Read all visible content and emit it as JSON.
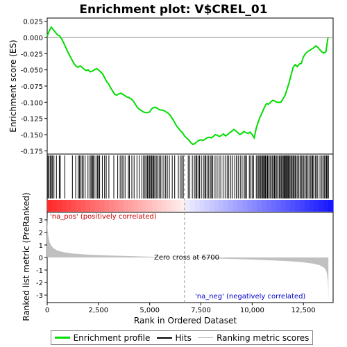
{
  "chart_data": {
    "type": "line",
    "title": "Enrichment plot: V$CREL_01",
    "top_panel": {
      "ylabel": "Enrichment score (ES)",
      "ylim": [
        -0.18,
        0.03
      ],
      "yticks": [
        0.025,
        0.0,
        -0.025,
        -0.05,
        -0.075,
        -0.1,
        -0.125,
        -0.15,
        -0.175
      ],
      "ytick_labels": [
        "0.025",
        "0.000",
        "-0.025",
        "-0.050",
        "-0.075",
        "-0.100",
        "-0.125",
        "-0.150",
        "-0.175"
      ],
      "series": [
        {
          "name": "Enrichment profile",
          "color": "#00dd00",
          "x": [
            0,
            100,
            200,
            300,
            400,
            500,
            600,
            700,
            800,
            900,
            1000,
            1100,
            1200,
            1300,
            1400,
            1500,
            1600,
            1700,
            1800,
            1900,
            2000,
            2100,
            2200,
            2300,
            2400,
            2500,
            2600,
            2700,
            2800,
            2900,
            3000,
            3100,
            3200,
            3300,
            3400,
            3500,
            3600,
            3700,
            3800,
            3900,
            4000,
            4100,
            4200,
            4300,
            4400,
            4500,
            4600,
            4700,
            4800,
            4900,
            5000,
            5100,
            5200,
            5300,
            5400,
            5500,
            5600,
            5700,
            5800,
            5900,
            6000,
            6100,
            6200,
            6300,
            6400,
            6500,
            6600,
            6700,
            6800,
            6900,
            7000,
            7100,
            7200,
            7300,
            7400,
            7500,
            7600,
            7700,
            7800,
            7900,
            8000,
            8100,
            8200,
            8300,
            8400,
            8500,
            8600,
            8700,
            8800,
            8900,
            9000,
            9100,
            9200,
            9300,
            9400,
            9500,
            9600,
            9700,
            9800,
            9900,
            10000,
            10100,
            10200,
            10300,
            10400,
            10500,
            10600,
            10700,
            10800,
            10900,
            11000,
            11100,
            11200,
            11300,
            11400,
            11500,
            11600,
            11700,
            11800,
            11900,
            12000,
            12100,
            12200,
            12300,
            12400,
            12500,
            12600,
            12700,
            12800,
            12900,
            13000,
            13100,
            13200,
            13300,
            13400,
            13500,
            13600,
            13700
          ],
          "y": [
            0.002,
            0.01,
            0.016,
            0.012,
            0.008,
            0.004,
            0.003,
            -0.002,
            -0.008,
            -0.015,
            -0.022,
            -0.028,
            -0.034,
            -0.04,
            -0.044,
            -0.046,
            -0.044,
            -0.046,
            -0.049,
            -0.051,
            -0.05,
            -0.053,
            -0.052,
            -0.05,
            -0.048,
            -0.05,
            -0.053,
            -0.056,
            -0.062,
            -0.068,
            -0.072,
            -0.078,
            -0.083,
            -0.088,
            -0.089,
            -0.087,
            -0.086,
            -0.088,
            -0.09,
            -0.092,
            -0.093,
            -0.095,
            -0.098,
            -0.103,
            -0.108,
            -0.111,
            -0.113,
            -0.115,
            -0.116,
            -0.116,
            -0.115,
            -0.11,
            -0.108,
            -0.108,
            -0.11,
            -0.112,
            -0.112,
            -0.113,
            -0.115,
            -0.117,
            -0.12,
            -0.125,
            -0.13,
            -0.136,
            -0.14,
            -0.144,
            -0.147,
            -0.152,
            -0.155,
            -0.158,
            -0.162,
            -0.165,
            -0.164,
            -0.161,
            -0.159,
            -0.158,
            -0.159,
            -0.157,
            -0.155,
            -0.154,
            -0.155,
            -0.153,
            -0.15,
            -0.151,
            -0.153,
            -0.151,
            -0.149,
            -0.152,
            -0.15,
            -0.147,
            -0.145,
            -0.142,
            -0.144,
            -0.147,
            -0.15,
            -0.148,
            -0.145,
            -0.147,
            -0.148,
            -0.146,
            -0.15,
            -0.155,
            -0.14,
            -0.13,
            -0.122,
            -0.115,
            -0.108,
            -0.102,
            -0.103,
            -0.1,
            -0.097,
            -0.098,
            -0.1,
            -0.1,
            -0.1,
            -0.095,
            -0.09,
            -0.08,
            -0.07,
            -0.058,
            -0.046,
            -0.042,
            -0.045,
            -0.041,
            -0.04,
            -0.03,
            -0.025,
            -0.022,
            -0.02,
            -0.018,
            -0.016,
            -0.013,
            -0.015,
            -0.019,
            -0.022,
            -0.024,
            -0.022,
            0.0
          ]
        }
      ]
    },
    "hits_panel": {
      "label": "Hits",
      "hit_positions": [
        40,
        90,
        150,
        210,
        260,
        330,
        450,
        590,
        640,
        860,
        1230,
        1390,
        1510,
        1570,
        1620,
        1700,
        1760,
        1850,
        1990,
        2090,
        2140,
        2200,
        2240,
        2290,
        2380,
        2460,
        2520,
        2560,
        2690,
        2800,
        2880,
        3010,
        3250,
        3440,
        3560,
        3650,
        3700,
        3800,
        3960,
        4010,
        4130,
        4240,
        4380,
        4490,
        4620,
        4700,
        4770,
        4830,
        4890,
        4950,
        5000,
        5050,
        5100,
        5150,
        5200,
        5250,
        5320,
        5390,
        5460,
        5530,
        5600,
        5690,
        5780,
        5860,
        5960,
        6100,
        6220,
        6400,
        6490,
        6570,
        6640,
        6880,
        6960,
        7080,
        7180,
        7250,
        7300,
        7360,
        7430,
        7520,
        7620,
        7690,
        7740,
        7800,
        7880,
        7960,
        8020,
        8080,
        8190,
        8290,
        8390,
        8470,
        8580,
        8680,
        8780,
        8860,
        8960,
        9050,
        9150,
        9230,
        9320,
        9420,
        9510,
        9610,
        9660,
        9730,
        9860,
        9930,
        10000,
        10070,
        10200,
        10260,
        10320,
        10370,
        10420,
        10470,
        10520,
        10560,
        10610,
        10650,
        10700,
        10750,
        10800,
        10870,
        10920,
        10980,
        11040,
        11090,
        11130,
        11200,
        11260,
        11320,
        11370,
        11420,
        11470,
        11520,
        11570,
        11600,
        11640,
        11680,
        11720,
        11760,
        11800,
        11850,
        11900,
        11950,
        12000,
        12050,
        12100,
        12150,
        12220,
        12280,
        12340,
        12400,
        12460,
        12520,
        12580,
        12640,
        12700,
        12770,
        12840,
        12900,
        12950,
        13000,
        13080,
        13140,
        13200,
        13310,
        13400,
        13460,
        13520,
        13580,
        13630,
        13680,
        13720
      ]
    },
    "ranked_panel": {
      "ylabel": "Ranked list metric (PreRanked)",
      "xlabel": "Rank in Ordered Dataset",
      "ylim": [
        -3.6,
        3.6
      ],
      "yticks": [
        3,
        2,
        1,
        0,
        -1,
        -2,
        -3
      ],
      "ytick_labels": [
        "3",
        "2",
        "1",
        "0",
        "-1",
        "-2",
        "-3"
      ],
      "xlim": [
        0,
        13950
      ],
      "xticks": [
        0,
        2500,
        5000,
        7500,
        10000,
        12500
      ],
      "xtick_labels": [
        "0",
        "2,500",
        "5,000",
        "7,500",
        "10,000",
        "12,500"
      ],
      "metric_x": [
        0,
        20,
        60,
        120,
        200,
        300,
        500,
        800,
        1200,
        2000,
        3000,
        4000,
        5000,
        6000,
        6700,
        7500,
        8500,
        9500,
        10500,
        11500,
        12000,
        12500,
        13000,
        13300,
        13500,
        13600,
        13650,
        13700,
        13720
      ],
      "metric_y": [
        3.3,
        2.3,
        1.6,
        1.2,
        0.95,
        0.75,
        0.55,
        0.42,
        0.32,
        0.22,
        0.16,
        0.11,
        0.06,
        0.02,
        0.0,
        -0.04,
        -0.09,
        -0.14,
        -0.2,
        -0.27,
        -0.32,
        -0.39,
        -0.5,
        -0.62,
        -0.8,
        -1.0,
        -1.3,
        -2.0,
        -3.4
      ],
      "zero_cross_rank": 6700,
      "annotation_zero": "Zero cross at 6700",
      "label_pos": "'na_pos' (positively correlated)",
      "label_neg": "'na_neg' (negatively correlated)"
    },
    "legend": {
      "placement": "bottom",
      "items": [
        {
          "label": "Enrichment profile",
          "color": "#00dd00"
        },
        {
          "label": "Hits",
          "color": "#000000"
        },
        {
          "label": "Ranking metric scores",
          "color": "#c0c0c0"
        }
      ]
    },
    "colors": {
      "profile": "#00dd00",
      "positive": "#ff0000",
      "negative": "#0000ff",
      "metric_fill": "#c0c0c0",
      "zero_line": "#999999"
    }
  }
}
